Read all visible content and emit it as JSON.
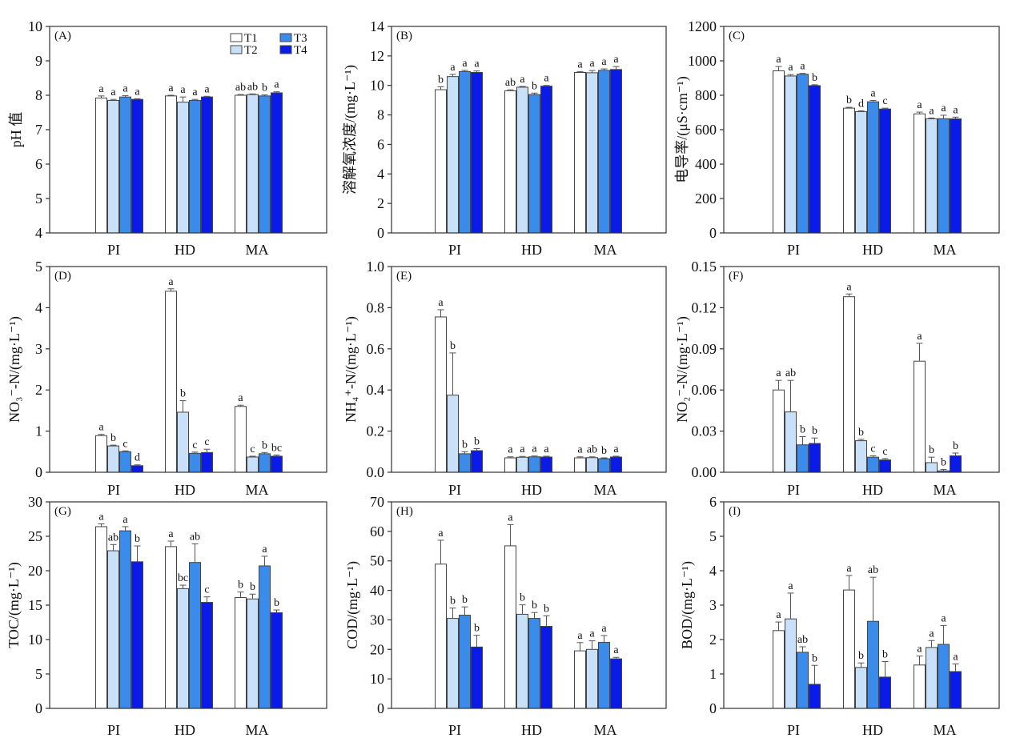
{
  "colors": {
    "T1": "#ffffff",
    "T2": "#c8e0f8",
    "T3": "#3b8beb",
    "T4": "#0a1be8",
    "axis": "#333333",
    "bar_outline": "#444444",
    "error_bar": "#555555"
  },
  "chart_data": [
    {
      "type": "bar",
      "panel_label": "(A)",
      "ylabel": "pH 值",
      "ylim": [
        4,
        10
      ],
      "yticks": [
        "4",
        "5",
        "6",
        "7",
        "8",
        "9",
        "10"
      ],
      "categories": [
        "PI",
        "HD",
        "MA"
      ],
      "legend": {
        "entries": [
          "T1",
          "T2",
          "T3",
          "T4"
        ],
        "placement": "top-right"
      },
      "series": [
        {
          "name": "T1",
          "values": [
            7.92,
            7.98,
            8.0
          ],
          "errors": [
            0.06,
            0.02,
            0.02
          ],
          "letters": [
            "a",
            "a",
            "ab"
          ]
        },
        {
          "name": "T2",
          "values": [
            7.85,
            7.8,
            8.02
          ],
          "errors": [
            0.03,
            0.15,
            0.02
          ],
          "letters": [
            "a",
            "a",
            "ab"
          ]
        },
        {
          "name": "T3",
          "values": [
            7.95,
            7.85,
            7.98
          ],
          "errors": [
            0.04,
            0.03,
            0.03
          ],
          "letters": [
            "a",
            "a",
            "b"
          ]
        },
        {
          "name": "T4",
          "values": [
            7.88,
            7.95,
            8.07
          ],
          "errors": [
            0.02,
            0.02,
            0.03
          ],
          "letters": [
            "a",
            "a",
            "a"
          ]
        }
      ]
    },
    {
      "type": "bar",
      "panel_label": "(B)",
      "ylabel": "溶解氧浓度/(mg·L⁻¹)",
      "ylim": [
        0,
        14
      ],
      "yticks": [
        "0",
        "2",
        "4",
        "6",
        "8",
        "10",
        "12",
        "14"
      ],
      "categories": [
        "PI",
        "HD",
        "MA"
      ],
      "series": [
        {
          "name": "T1",
          "values": [
            9.71,
            9.64,
            10.88
          ],
          "errors": [
            0.2,
            0.06,
            0.06
          ],
          "letters": [
            "b",
            "ab",
            "a"
          ]
        },
        {
          "name": "T2",
          "values": [
            10.6,
            9.88,
            10.86
          ],
          "errors": [
            0.15,
            0.05,
            0.15
          ],
          "letters": [
            "a",
            "a",
            "a"
          ]
        },
        {
          "name": "T3",
          "values": [
            10.94,
            9.38,
            11.02
          ],
          "errors": [
            0.08,
            0.1,
            0.1
          ],
          "letters": [
            "a",
            "b",
            "a"
          ]
        },
        {
          "name": "T4",
          "values": [
            10.88,
            9.95,
            11.08
          ],
          "errors": [
            0.1,
            0.05,
            0.2
          ],
          "letters": [
            "a",
            "a",
            "a"
          ]
        }
      ]
    },
    {
      "type": "bar",
      "panel_label": "(C)",
      "ylabel": "电导率/(μS·cm⁻¹)",
      "ylim": [
        0,
        1200
      ],
      "yticks": [
        "0",
        "200",
        "400",
        "600",
        "800",
        "1000",
        "1200"
      ],
      "categories": [
        "PI",
        "HD",
        "MA"
      ],
      "series": [
        {
          "name": "T1",
          "values": [
            942,
            725,
            692
          ],
          "errors": [
            25,
            5,
            10
          ],
          "letters": [
            "a",
            "b",
            "a"
          ]
        },
        {
          "name": "T2",
          "values": [
            912,
            705,
            663
          ],
          "errors": [
            8,
            5,
            5
          ],
          "letters": [
            "a",
            "d",
            "a"
          ]
        },
        {
          "name": "T3",
          "values": [
            922,
            762,
            664
          ],
          "errors": [
            5,
            8,
            20
          ],
          "letters": [
            "a",
            "a",
            "a"
          ]
        },
        {
          "name": "T4",
          "values": [
            856,
            720,
            663
          ],
          "errors": [
            5,
            5,
            10
          ],
          "letters": [
            "b",
            "c",
            "a"
          ]
        }
      ]
    },
    {
      "type": "bar",
      "panel_label": "(D)",
      "ylabel": "NO₃⁻-N/(mg·L⁻¹)",
      "ylim": [
        0,
        5
      ],
      "yticks": [
        "0",
        "1",
        "2",
        "3",
        "4",
        "5"
      ],
      "categories": [
        "PI",
        "HD",
        "MA"
      ],
      "series": [
        {
          "name": "T1",
          "values": [
            0.89,
            4.4,
            1.6
          ],
          "errors": [
            0.03,
            0.06,
            0.03
          ],
          "letters": [
            "a",
            "a",
            "a"
          ]
        },
        {
          "name": "T2",
          "values": [
            0.64,
            1.46,
            0.37
          ],
          "errors": [
            0.02,
            0.28,
            0.02
          ],
          "letters": [
            "b",
            "b",
            "c"
          ]
        },
        {
          "name": "T3",
          "values": [
            0.5,
            0.46,
            0.45
          ],
          "errors": [
            0.02,
            0.03,
            0.03
          ],
          "letters": [
            "c",
            "c",
            "b"
          ]
        },
        {
          "name": "T4",
          "values": [
            0.16,
            0.48,
            0.39
          ],
          "errors": [
            0.02,
            0.08,
            0.03
          ],
          "letters": [
            "d",
            "c",
            "bc"
          ]
        }
      ]
    },
    {
      "type": "bar",
      "panel_label": "(E)",
      "ylabel": "NH₄⁺-N/(mg·L⁻¹)",
      "ylim": [
        0,
        1.0
      ],
      "yticks": [
        "0.0",
        "0.2",
        "0.4",
        "0.6",
        "0.8",
        "1.0"
      ],
      "categories": [
        "PI",
        "HD",
        "MA"
      ],
      "series": [
        {
          "name": "T1",
          "values": [
            0.755,
            0.07,
            0.07
          ],
          "errors": [
            0.035,
            0.005,
            0.005
          ],
          "letters": [
            "a",
            "a",
            "a"
          ]
        },
        {
          "name": "T2",
          "values": [
            0.375,
            0.073,
            0.071
          ],
          "errors": [
            0.205,
            0.004,
            0.004
          ],
          "letters": [
            "b",
            "a",
            "ab"
          ]
        },
        {
          "name": "T3",
          "values": [
            0.09,
            0.075,
            0.066
          ],
          "errors": [
            0.01,
            0.004,
            0.004
          ],
          "letters": [
            "b",
            "a",
            "b"
          ]
        },
        {
          "name": "T4",
          "values": [
            0.105,
            0.074,
            0.074
          ],
          "errors": [
            0.01,
            0.004,
            0.004
          ],
          "letters": [
            "b",
            "a",
            "a"
          ]
        }
      ]
    },
    {
      "type": "bar",
      "panel_label": "(F)",
      "ylabel": "NO₂⁻-N/(mg·L⁻¹)",
      "ylim": [
        0,
        0.15
      ],
      "yticks": [
        "0.00",
        "0.03",
        "0.06",
        "0.09",
        "0.12",
        "0.15"
      ],
      "categories": [
        "PI",
        "HD",
        "MA"
      ],
      "series": [
        {
          "name": "T1",
          "values": [
            0.06,
            0.128,
            0.081
          ],
          "errors": [
            0.007,
            0.002,
            0.013
          ],
          "letters": [
            "a",
            "a",
            "a"
          ]
        },
        {
          "name": "T2",
          "values": [
            0.044,
            0.023,
            0.007
          ],
          "errors": [
            0.023,
            0.001,
            0.004
          ],
          "letters": [
            "ab",
            "b",
            "b"
          ]
        },
        {
          "name": "T3",
          "values": [
            0.02,
            0.011,
            0.001
          ],
          "errors": [
            0.006,
            0.001,
            0.001
          ],
          "letters": [
            "b",
            "c",
            "b"
          ]
        },
        {
          "name": "T4",
          "values": [
            0.021,
            0.009,
            0.012
          ],
          "errors": [
            0.004,
            0.001,
            0.002
          ],
          "letters": [
            "b",
            "c",
            "b"
          ]
        }
      ]
    },
    {
      "type": "bar",
      "panel_label": "(G)",
      "ylabel": "TOC/(mg·L⁻¹)",
      "ylim": [
        0,
        30
      ],
      "yticks": [
        "0",
        "5",
        "10",
        "15",
        "20",
        "25",
        "30"
      ],
      "categories": [
        "PI",
        "HD",
        "MA"
      ],
      "series": [
        {
          "name": "T1",
          "values": [
            26.4,
            23.5,
            16.1
          ],
          "errors": [
            0.4,
            0.8,
            0.8
          ],
          "letters": [
            "a",
            "a",
            "b"
          ]
        },
        {
          "name": "T2",
          "values": [
            22.9,
            17.4,
            15.9
          ],
          "errors": [
            0.9,
            0.5,
            0.7
          ],
          "letters": [
            "ab",
            "bc",
            "b"
          ]
        },
        {
          "name": "T3",
          "values": [
            25.8,
            21.2,
            20.7
          ],
          "errors": [
            0.6,
            2.7,
            1.4
          ],
          "letters": [
            "a",
            "ab",
            "a"
          ]
        },
        {
          "name": "T4",
          "values": [
            21.3,
            15.4,
            13.9
          ],
          "errors": [
            2.3,
            0.8,
            0.4
          ],
          "letters": [
            "b",
            "c",
            "b"
          ]
        }
      ]
    },
    {
      "type": "bar",
      "panel_label": "(H)",
      "ylabel": "COD/(mg·L⁻¹)",
      "ylim": [
        0,
        70
      ],
      "yticks": [
        "0",
        "10",
        "20",
        "30",
        "40",
        "50",
        "60",
        "70"
      ],
      "categories": [
        "PI",
        "HD",
        "MA"
      ],
      "series": [
        {
          "name": "T1",
          "values": [
            48.9,
            55.1,
            19.5
          ],
          "errors": [
            8.1,
            7.2,
            2.8
          ],
          "letters": [
            "a",
            "a",
            "a"
          ]
        },
        {
          "name": "T2",
          "values": [
            30.5,
            31.9,
            20.0
          ],
          "errors": [
            3.5,
            3.2,
            2.9
          ],
          "letters": [
            "b",
            "b",
            "a"
          ]
        },
        {
          "name": "T3",
          "values": [
            31.6,
            30.5,
            22.4
          ],
          "errors": [
            2.8,
            2.0,
            2.3
          ],
          "letters": [
            "b",
            "b",
            "a"
          ]
        },
        {
          "name": "T4",
          "values": [
            20.8,
            27.8,
            16.8
          ],
          "errors": [
            4.0,
            3.6,
            0.5
          ],
          "letters": [
            "b",
            "b",
            "a"
          ]
        }
      ]
    },
    {
      "type": "bar",
      "panel_label": "(I)",
      "ylabel": "BOD/(mg·L⁻¹)",
      "ylim": [
        0,
        6
      ],
      "yticks": [
        "0",
        "1",
        "2",
        "3",
        "4",
        "5",
        "6"
      ],
      "categories": [
        "PI",
        "HD",
        "MA"
      ],
      "series": [
        {
          "name": "T1",
          "values": [
            2.26,
            3.44,
            1.26
          ],
          "errors": [
            0.25,
            0.42,
            0.26
          ],
          "letters": [
            "a",
            "a",
            "a"
          ]
        },
        {
          "name": "T2",
          "values": [
            2.6,
            1.19,
            1.77
          ],
          "errors": [
            0.75,
            0.13,
            0.2
          ],
          "letters": [
            "a",
            "b",
            "a"
          ]
        },
        {
          "name": "T3",
          "values": [
            1.63,
            2.53,
            1.86
          ],
          "errors": [
            0.16,
            1.28,
            0.55
          ],
          "letters": [
            "ab",
            "ab",
            "a"
          ]
        },
        {
          "name": "T4",
          "values": [
            0.7,
            0.91,
            1.07
          ],
          "errors": [
            0.55,
            0.45,
            0.22
          ],
          "letters": [
            "b",
            "b",
            "a"
          ]
        }
      ]
    }
  ]
}
